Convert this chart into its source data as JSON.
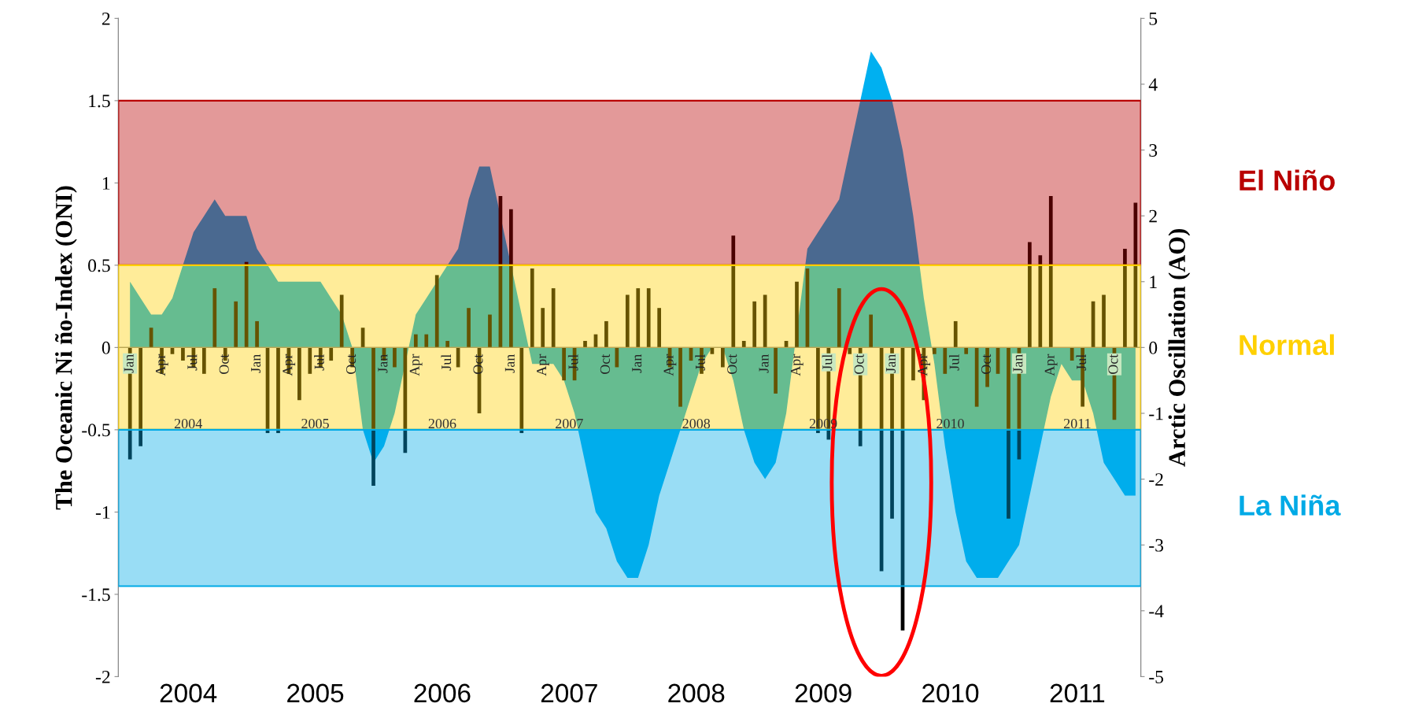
{
  "chart_data": {
    "type": "area",
    "ylabel": "The Oceanic Ni ño-Index (ONI)",
    "y2label": "Arctic Oscillation (AO)",
    "categories": [
      "Jan",
      null,
      null,
      "Apr",
      null,
      null,
      "Jul",
      null,
      null,
      "Oct",
      null,
      null,
      "Jan",
      null,
      null,
      "Apr",
      null,
      null,
      "Jul",
      null,
      null,
      "Oct",
      null,
      null,
      "Jan",
      null,
      null,
      "Apr",
      null,
      null,
      "Jul",
      null,
      null,
      "Oct",
      null,
      null,
      "Jan",
      null,
      null,
      "Apr",
      null,
      null,
      "Jul",
      null,
      null,
      "Oct",
      null,
      null,
      "Jan",
      null,
      null,
      "Apr",
      null,
      null,
      "Jul",
      null,
      null,
      "Oct",
      null,
      null,
      "Jan",
      null,
      null,
      "Apr",
      null,
      null,
      "Jul",
      null,
      null,
      "Oct",
      null,
      null,
      "Jan",
      null,
      null,
      "Apr",
      null,
      null,
      "Jul",
      null,
      null,
      "Oct",
      null,
      null,
      "Jan",
      null,
      null,
      "Apr",
      null,
      null,
      "Jul",
      null,
      null,
      "Oct",
      null,
      null
    ],
    "series": [
      {
        "color": "#00b0f0",
        "values": [
          0.4,
          0.3,
          0.2,
          0.2,
          0.3,
          0.5,
          0.7,
          0.8,
          0.9,
          0.8,
          0.8,
          0.8,
          0.6,
          0.5,
          0.4,
          0.4,
          0.4,
          0.4,
          0.4,
          0.3,
          0.2,
          0.0,
          -0.5,
          -0.7,
          -0.6,
          -0.4,
          -0.1,
          0.2,
          0.3,
          0.4,
          0.5,
          0.6,
          0.9,
          1.1,
          1.1,
          0.8,
          0.5,
          0.2,
          -0.1,
          -0.1,
          -0.1,
          -0.2,
          -0.4,
          -0.7,
          -1.0,
          -1.1,
          -1.3,
          -1.4,
          -1.4,
          -1.2,
          -0.9,
          -0.7,
          -0.5,
          -0.3,
          -0.1,
          0.0,
          0.0,
          -0.2,
          -0.5,
          -0.7,
          -0.8,
          -0.7,
          -0.4,
          0.1,
          0.6,
          0.7,
          0.8,
          0.9,
          1.2,
          1.5,
          1.8,
          1.7,
          1.5,
          1.2,
          0.8,
          0.3,
          -0.1,
          -0.6,
          -1.0,
          -1.3,
          -1.4,
          -1.4,
          -1.4,
          -1.3,
          -1.2,
          -0.9,
          -0.6,
          -0.3,
          -0.1,
          -0.2,
          -0.2,
          -0.4,
          -0.7,
          -0.8,
          -0.9,
          -0.9
        ]
      },
      {
        "type": "bar",
        "axis": "y2",
        "color": "#000000",
        "values": [
          -1.7,
          -1.5,
          0.3,
          -0.4,
          -0.1,
          -0.2,
          -0.3,
          -0.4,
          0.9,
          -0.2,
          0.7,
          1.3,
          0.4,
          -1.3,
          -1.3,
          -0.4,
          -0.8,
          -0.4,
          -0.3,
          -0.2,
          0.8,
          -0.3,
          0.3,
          -2.1,
          -0.2,
          -0.3,
          -1.6,
          0.2,
          0.2,
          1.1,
          0.1,
          -0.3,
          0.6,
          -1.0,
          0.5,
          2.3,
          2.1,
          -1.3,
          1.2,
          0.6,
          0.9,
          -0.5,
          -0.5,
          0.1,
          0.2,
          0.4,
          -0.3,
          0.8,
          0.9,
          0.9,
          0.6,
          -0.3,
          -0.9,
          -0.2,
          -0.4,
          -0.1,
          -0.3,
          1.7,
          0.1,
          0.7,
          0.8,
          -0.7,
          0.1,
          1.0,
          1.2,
          -1.3,
          -1.4,
          0.9,
          -0.1,
          -1.5,
          0.5,
          -3.4,
          -2.6,
          -4.3,
          -0.5,
          -0.8,
          -0.1,
          -0.4,
          0.4,
          -0.1,
          -0.9,
          -0.6,
          -0.4,
          -2.6,
          -1.7,
          1.6,
          1.4,
          2.3,
          0.0,
          -0.2,
          -0.9,
          0.7,
          0.8,
          -1.1,
          1.5,
          2.2
        ]
      }
    ],
    "ylim": [
      -2,
      2
    ],
    "yticks": [
      -2,
      -1.5,
      -1,
      -0.5,
      0,
      0.5,
      1,
      1.5,
      2
    ],
    "y2lim": [
      -5,
      5
    ],
    "y2ticks": [
      -5,
      -4,
      -3,
      -2,
      -1,
      0,
      1,
      2,
      3,
      4,
      5
    ],
    "bands": [
      {
        "axis": "y",
        "from": 0.5,
        "to": 1.5,
        "label": "El Niño",
        "color": "#b90000"
      },
      {
        "axis": "y",
        "from": -0.5,
        "to": 0.5,
        "label": "Normal",
        "color": "#ffd000"
      },
      {
        "axis": "y",
        "from": -1.45,
        "to": -0.5,
        "label": "La Niña",
        "color": "#00aae6"
      }
    ],
    "annotations": [
      "2004",
      "2005",
      "2006",
      "2007",
      "2008",
      "2009",
      "2010",
      "2011",
      "2004",
      "2005",
      "2006",
      "2007",
      "2008",
      "2009",
      "2010",
      "2011"
    ],
    "grid": false,
    "legend": false
  }
}
